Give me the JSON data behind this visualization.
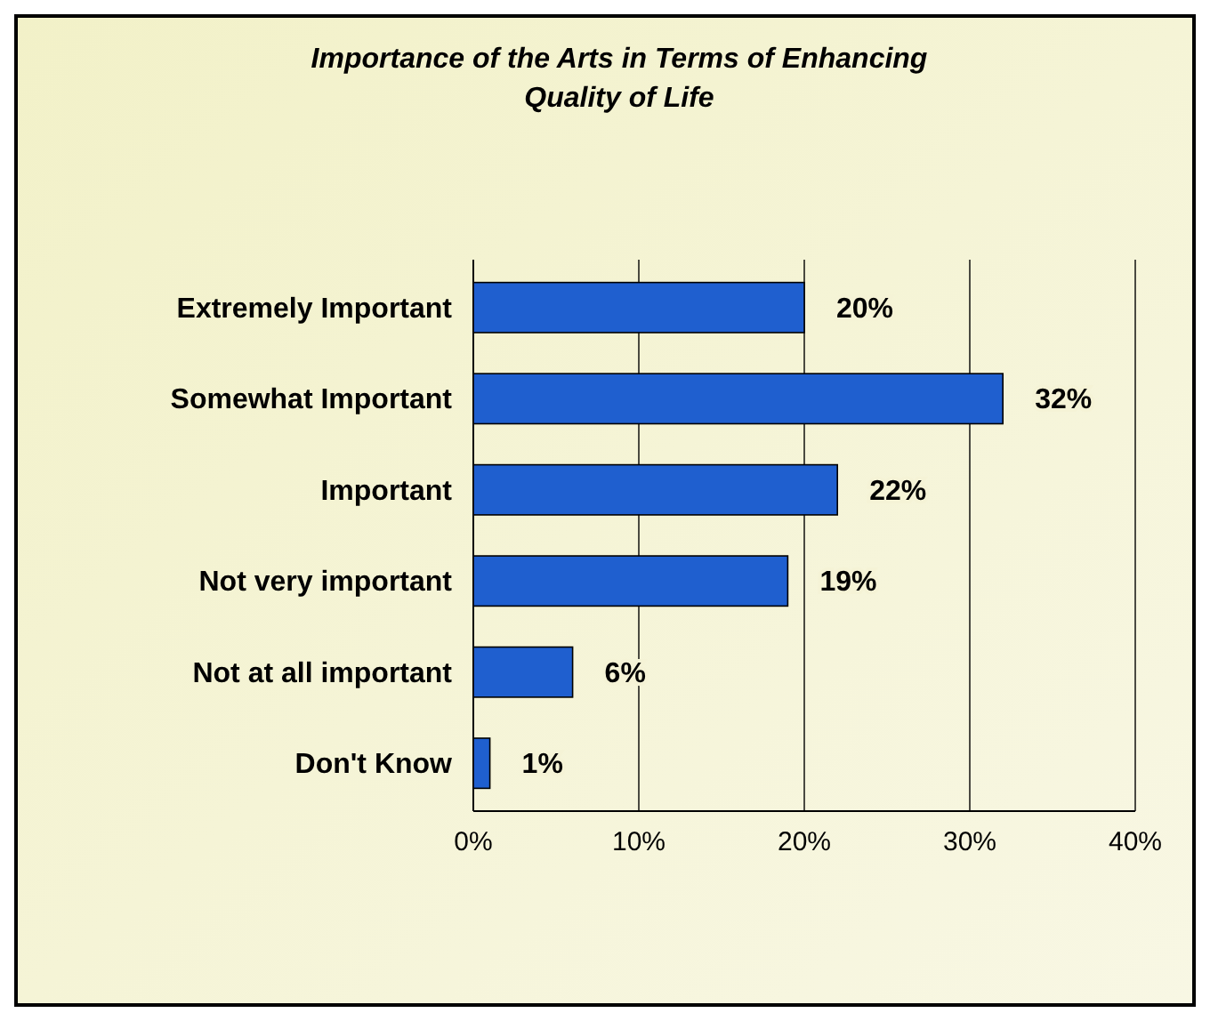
{
  "chart_data": {
    "type": "bar",
    "orientation": "horizontal",
    "title": "Importance of the Arts in Terms of Enhancing Quality of Life",
    "categories": [
      "Extremely Important",
      "Somewhat Important",
      "Important",
      "Not very important",
      "Not at all important",
      "Don't Know"
    ],
    "values": [
      20,
      32,
      22,
      19,
      6,
      1
    ],
    "value_labels": [
      "20%",
      "32%",
      "22%",
      "19%",
      "6%",
      "1%"
    ],
    "color": "#1f5fcf",
    "xlim": [
      0,
      40
    ],
    "xticks": [
      {
        "value": 0,
        "label": "0%"
      },
      {
        "value": 10,
        "label": "10%"
      },
      {
        "value": 20,
        "label": "20%"
      },
      {
        "value": 30,
        "label": "30%"
      },
      {
        "value": 40,
        "label": "40%"
      }
    ],
    "grid": "x"
  }
}
